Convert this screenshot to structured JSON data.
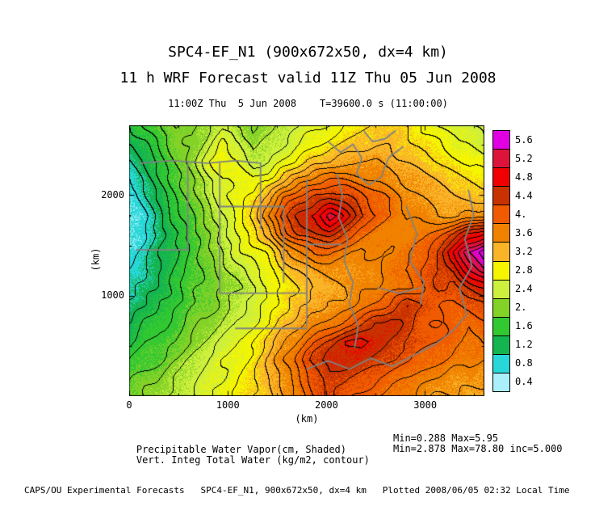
{
  "header": {
    "title_line1": "SPC4-EF_N1 (900x672x50, dx=4 km)",
    "title_line2": "11 h WRF Forecast valid 11Z Thu 05 Jun 2008",
    "subtitle": "11:00Z Thu  5 Jun 2008    T=39600.0 s (11:00:00)"
  },
  "annotations": {
    "line1_label": "Precipitable Water Vapor(cm, Shaded)",
    "line1_stats": "Min=0.288 Max=5.95",
    "line2_label": "Vert. Integ Total Water (kg/m2, contour)",
    "line2_stats": "Min=2.878 Max=78.80 inc=5.000"
  },
  "footer": {
    "credit": "CAPS/OU Experimental Forecasts   SPC4-EF_N1, 900x672x50, dx=4 km   Plotted 2008/06/05 02:32 Local Time"
  },
  "chart_data": {
    "type": "heatmap",
    "field_name": "Precipitable Water Vapor",
    "units": "cm",
    "x_label": "(km)",
    "y_label": "(km)",
    "x_range_km": [
      0,
      3600
    ],
    "y_range_km": [
      0,
      2688
    ],
    "x_ticks": [
      0,
      1000,
      2000,
      3000
    ],
    "y_ticks": [
      1000,
      2000
    ],
    "shade_min": 0.288,
    "shade_max": 5.95,
    "contour": {
      "field": "Vert. Integ Total Water",
      "units": "kg/m2",
      "min": 2.878,
      "max": 78.8,
      "inc": 5.0
    },
    "contour_line_step_cm": 0.2,
    "noise_amp": 0.18,
    "boundary_color": "#828282",
    "colorbar": {
      "level_step": 0.4,
      "labels": [
        "5.6",
        "5.2",
        "4.8",
        "4.4",
        "4.",
        "3.6",
        "3.2",
        "2.8",
        "2.4",
        "2.",
        "1.6",
        "1.2",
        "0.8",
        "0.4"
      ],
      "colors_top_to_bottom": [
        "#e100e1",
        "#dc143c",
        "#f00000",
        "#c83200",
        "#f05a00",
        "#f08200",
        "#fab428",
        "#f5f500",
        "#cdf03c",
        "#82d228",
        "#32c832",
        "#14b450",
        "#28d7d7",
        "#aaf0fa"
      ]
    },
    "grid": {
      "nx": 24,
      "ny": 16,
      "order": "rows top(north) to bottom(south), columns left(west) to right(east)",
      "values": [
        [
          1.6,
          1.8,
          2.0,
          2.2,
          2.1,
          2.3,
          2.6,
          2.4,
          2.2,
          2.3,
          2.5,
          2.6,
          2.7,
          2.8,
          3.0,
          3.1,
          3.2,
          3.3,
          3.2,
          3.0,
          2.8,
          2.7,
          2.6,
          2.5
        ],
        [
          1.4,
          1.6,
          1.9,
          2.1,
          2.2,
          2.5,
          2.9,
          2.7,
          2.3,
          2.4,
          2.6,
          2.8,
          3.0,
          3.1,
          3.2,
          3.3,
          3.4,
          3.4,
          3.3,
          3.1,
          3.0,
          2.9,
          2.8,
          2.7
        ],
        [
          1.2,
          1.4,
          1.7,
          2.0,
          2.3,
          2.7,
          3.0,
          2.8,
          2.5,
          2.6,
          2.9,
          3.1,
          3.3,
          3.4,
          3.5,
          3.6,
          3.6,
          3.5,
          3.4,
          3.3,
          3.2,
          3.1,
          3.0,
          2.9
        ],
        [
          1.0,
          1.3,
          1.6,
          1.9,
          2.2,
          2.5,
          2.8,
          2.9,
          2.8,
          3.0,
          3.4,
          3.7,
          3.9,
          4.0,
          4.0,
          3.9,
          3.8,
          3.7,
          3.6,
          3.5,
          3.4,
          3.3,
          3.2,
          3.1
        ],
        [
          0.9,
          1.2,
          1.5,
          1.8,
          2.1,
          2.4,
          2.7,
          2.9,
          3.1,
          3.5,
          4.0,
          4.3,
          4.5,
          4.6,
          4.5,
          4.3,
          4.1,
          3.9,
          3.7,
          3.6,
          3.5,
          3.4,
          3.4,
          3.3
        ],
        [
          0.8,
          1.0,
          1.3,
          1.7,
          2.0,
          2.3,
          2.6,
          2.9,
          3.2,
          3.8,
          4.4,
          4.7,
          4.9,
          5.3,
          4.9,
          4.5,
          4.2,
          4.0,
          3.8,
          3.7,
          3.6,
          3.6,
          3.7,
          3.8
        ],
        [
          0.8,
          1.0,
          1.3,
          1.6,
          1.9,
          2.2,
          2.5,
          2.8,
          3.1,
          3.5,
          4.1,
          4.4,
          4.6,
          4.7,
          4.4,
          4.1,
          3.9,
          3.8,
          3.8,
          3.9,
          4.1,
          4.4,
          4.8,
          5.0
        ],
        [
          0.9,
          1.1,
          1.4,
          1.6,
          1.9,
          2.1,
          2.4,
          2.7,
          2.9,
          3.1,
          3.5,
          3.8,
          4.0,
          4.0,
          3.9,
          3.8,
          3.8,
          3.8,
          3.9,
          4.1,
          4.5,
          5.0,
          5.6,
          5.9
        ],
        [
          1.0,
          1.2,
          1.4,
          1.7,
          1.9,
          2.1,
          2.3,
          2.5,
          2.7,
          2.9,
          3.2,
          3.4,
          3.6,
          3.7,
          3.7,
          3.7,
          3.8,
          3.9,
          4.0,
          4.2,
          4.4,
          4.6,
          5.2,
          5.6
        ],
        [
          1.1,
          1.3,
          1.5,
          1.7,
          1.9,
          2.1,
          2.2,
          2.4,
          2.6,
          2.8,
          3.0,
          3.2,
          3.4,
          3.5,
          3.6,
          3.7,
          3.8,
          3.9,
          4.0,
          4.2,
          4.4,
          4.3,
          4.6,
          4.8
        ],
        [
          1.2,
          1.4,
          1.6,
          1.8,
          2.0,
          2.1,
          2.3,
          2.5,
          2.7,
          2.9,
          3.1,
          3.3,
          3.5,
          3.6,
          3.7,
          3.9,
          4.1,
          4.3,
          4.6,
          4.4,
          4.2,
          4.1,
          4.2,
          4.3
        ],
        [
          1.4,
          1.6,
          1.8,
          1.9,
          2.1,
          2.2,
          2.4,
          2.6,
          2.8,
          3.0,
          3.3,
          3.5,
          3.7,
          3.9,
          4.1,
          4.3,
          4.6,
          4.7,
          4.5,
          4.3,
          4.2,
          4.1,
          4.0,
          4.1
        ],
        [
          1.6,
          1.8,
          1.9,
          2.0,
          2.2,
          2.4,
          2.6,
          2.8,
          3.0,
          3.3,
          3.6,
          3.9,
          4.2,
          4.5,
          4.8,
          4.9,
          4.7,
          4.5,
          4.4,
          4.3,
          4.2,
          4.1,
          4.0,
          4.0
        ],
        [
          1.8,
          1.9,
          2.0,
          2.2,
          2.4,
          2.6,
          2.8,
          2.9,
          3.1,
          3.4,
          3.8,
          4.1,
          4.5,
          4.8,
          4.7,
          4.6,
          4.5,
          4.4,
          4.3,
          4.1,
          4.0,
          3.9,
          3.9,
          3.8
        ],
        [
          2.0,
          2.1,
          2.2,
          2.4,
          2.5,
          2.7,
          2.8,
          3.0,
          3.2,
          3.4,
          3.7,
          4.0,
          4.3,
          4.5,
          4.4,
          4.3,
          4.2,
          4.1,
          4.0,
          3.9,
          3.8,
          3.7,
          3.7,
          3.6
        ],
        [
          2.1,
          2.2,
          2.3,
          2.5,
          2.6,
          2.7,
          2.9,
          3.0,
          3.2,
          3.4,
          3.6,
          3.9,
          4.2,
          4.4,
          4.3,
          4.2,
          4.0,
          3.9,
          3.8,
          3.7,
          3.6,
          3.6,
          3.5,
          3.5
        ]
      ]
    },
    "overlay_gray_polylines_frac": [
      [
        [
          0.03,
          0.14
        ],
        [
          0.12,
          0.13
        ],
        [
          0.22,
          0.14
        ],
        [
          0.3,
          0.13
        ],
        [
          0.37,
          0.14
        ]
      ],
      [
        [
          0.37,
          0.14
        ],
        [
          0.37,
          0.38
        ]
      ],
      [
        [
          0.165,
          0.14
        ],
        [
          0.165,
          0.46
        ]
      ],
      [
        [
          0.02,
          0.46
        ],
        [
          0.165,
          0.46
        ]
      ],
      [
        [
          0.255,
          0.3
        ],
        [
          0.435,
          0.3
        ]
      ],
      [
        [
          0.255,
          0.14
        ],
        [
          0.255,
          0.62
        ]
      ],
      [
        [
          0.435,
          0.3
        ],
        [
          0.435,
          0.58
        ]
      ],
      [
        [
          0.255,
          0.62
        ],
        [
          0.5,
          0.62
        ]
      ],
      [
        [
          0.5,
          0.2
        ],
        [
          0.5,
          0.74
        ]
      ],
      [
        [
          0.5,
          0.44
        ],
        [
          0.6,
          0.44
        ]
      ],
      [
        [
          0.585,
          0.18
        ],
        [
          0.6,
          0.26
        ],
        [
          0.59,
          0.34
        ],
        [
          0.615,
          0.42
        ],
        [
          0.605,
          0.5
        ],
        [
          0.63,
          0.58
        ],
        [
          0.62,
          0.66
        ],
        [
          0.645,
          0.74
        ],
        [
          0.635,
          0.82
        ]
      ],
      [
        [
          0.56,
          0.06
        ],
        [
          0.595,
          0.1
        ],
        [
          0.63,
          0.07
        ],
        [
          0.655,
          0.12
        ],
        [
          0.64,
          0.18
        ],
        [
          0.675,
          0.22
        ],
        [
          0.71,
          0.19
        ],
        [
          0.73,
          0.12
        ],
        [
          0.77,
          0.08
        ]
      ],
      [
        [
          0.66,
          0.02
        ],
        [
          0.685,
          0.06
        ],
        [
          0.72,
          0.05
        ],
        [
          0.75,
          0.02
        ]
      ],
      [
        [
          0.5,
          0.9
        ],
        [
          0.56,
          0.87
        ],
        [
          0.62,
          0.9
        ],
        [
          0.68,
          0.86
        ],
        [
          0.74,
          0.89
        ],
        [
          0.8,
          0.85
        ],
        [
          0.86,
          0.81
        ],
        [
          0.91,
          0.76
        ],
        [
          0.95,
          0.7
        ]
      ],
      [
        [
          0.95,
          0.7
        ],
        [
          0.93,
          0.6
        ],
        [
          0.965,
          0.52
        ],
        [
          0.945,
          0.42
        ],
        [
          0.97,
          0.33
        ],
        [
          0.955,
          0.24
        ]
      ],
      [
        [
          0.78,
          0.3
        ],
        [
          0.81,
          0.4
        ],
        [
          0.79,
          0.5
        ],
        [
          0.83,
          0.58
        ],
        [
          0.82,
          0.66
        ]
      ],
      [
        [
          0.7,
          0.6
        ],
        [
          0.76,
          0.62
        ],
        [
          0.82,
          0.6
        ]
      ],
      [
        [
          0.3,
          0.75
        ],
        [
          0.5,
          0.75
        ]
      ]
    ]
  }
}
